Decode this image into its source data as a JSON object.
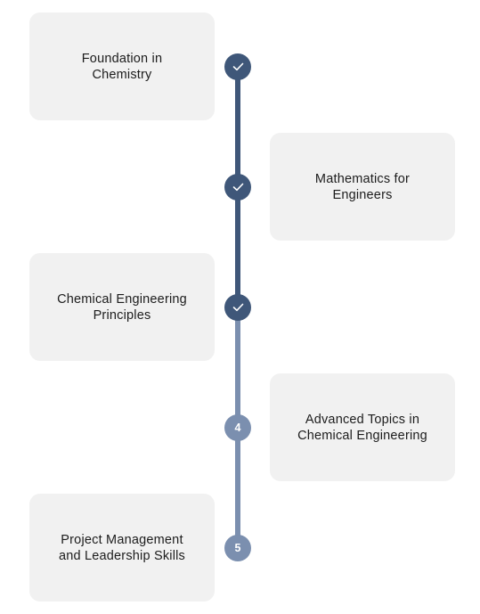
{
  "steps": [
    {
      "label": "Foundation in\nChemistry",
      "status": "completed",
      "marker": "check-icon",
      "side": "left"
    },
    {
      "label": "Mathematics for\nEngineers",
      "status": "completed",
      "marker": "check-icon",
      "side": "right"
    },
    {
      "label": "Chemical Engineering\nPrinciples",
      "status": "completed",
      "marker": "check-icon",
      "side": "left"
    },
    {
      "label": "Advanced Topics in\nChemical Engineering",
      "status": "pending",
      "number": "4",
      "side": "right"
    },
    {
      "label": "Project Management\nand Leadership Skills",
      "status": "pending",
      "number": "5",
      "side": "left"
    }
  ],
  "colors": {
    "completed": "#3f5779",
    "pending": "#7b8faf",
    "card_background": "#f1f1f1",
    "text": "#1c1c1c"
  }
}
